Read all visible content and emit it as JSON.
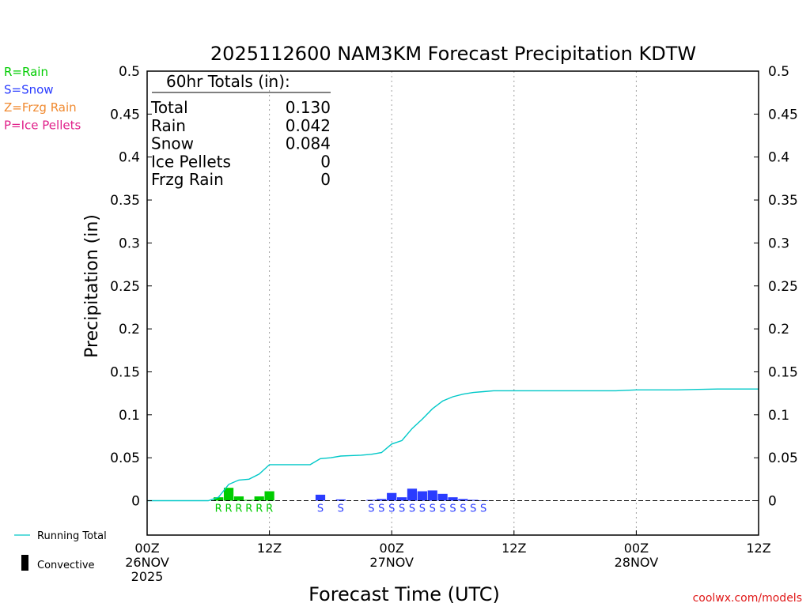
{
  "chart_data": {
    "type": "bar",
    "title": "2025112600 NAM3KM Forecast Precipitation KDTW",
    "xlabel": "Forecast Time (UTC)",
    "ylabel": "Precipitation (in)",
    "ylim": [
      -0.04,
      0.5
    ],
    "xlim_hours": [
      0,
      60
    ],
    "y_ticks": [
      0,
      0.05,
      0.1,
      0.15,
      0.2,
      0.25,
      0.3,
      0.35,
      0.4,
      0.45,
      0.5
    ],
    "y_tick_labels": [
      "0",
      "0.05",
      "0.1",
      "0.15",
      "0.2",
      "0.25",
      "0.3",
      "0.35",
      "0.4",
      "0.45",
      "0.5"
    ],
    "x_ticks": [
      {
        "hour": 0,
        "lines": [
          "00Z",
          "26NOV",
          "2025"
        ]
      },
      {
        "hour": 12,
        "lines": [
          "12Z"
        ]
      },
      {
        "hour": 24,
        "lines": [
          "00Z",
          "27NOV"
        ]
      },
      {
        "hour": 36,
        "lines": [
          "12Z"
        ]
      },
      {
        "hour": 48,
        "lines": [
          "00Z",
          "28NOV"
        ]
      },
      {
        "hour": 60,
        "lines": [
          "12Z"
        ]
      }
    ],
    "grid_hours": [
      12,
      24,
      36,
      48
    ],
    "legend": {
      "types": [
        {
          "label": "R=Rain",
          "color": "#00cc00"
        },
        {
          "label": "S=Snow",
          "color": "#2a3cff"
        },
        {
          "label": "Z=Frzg Rain",
          "color": "#f08a30"
        },
        {
          "label": "P=Ice Pellets",
          "color": "#e0208a"
        }
      ],
      "running_total_label": "Running Total",
      "convective_label": "Convective"
    },
    "totals": {
      "heading": "60hr Totals (in):",
      "rows": [
        {
          "label": "Total",
          "value": "0.130"
        },
        {
          "label": "Rain",
          "value": "0.042"
        },
        {
          "label": "Snow",
          "value": "0.084"
        },
        {
          "label": "Ice Pellets",
          "value": "0"
        },
        {
          "label": "Frzg Rain",
          "value": "0"
        }
      ]
    },
    "bars": [
      {
        "hour": 7,
        "value": 0.004,
        "type": "R"
      },
      {
        "hour": 8,
        "value": 0.015,
        "type": "R"
      },
      {
        "hour": 9,
        "value": 0.005,
        "type": "R"
      },
      {
        "hour": 10,
        "value": 0.001,
        "type": "R"
      },
      {
        "hour": 11,
        "value": 0.005,
        "type": "R"
      },
      {
        "hour": 12,
        "value": 0.011,
        "type": "R"
      },
      {
        "hour": 17,
        "value": 0.007,
        "type": "S"
      },
      {
        "hour": 19,
        "value": 0.0015,
        "type": "S"
      },
      {
        "hour": 22,
        "value": 0.001,
        "type": "S"
      },
      {
        "hour": 23,
        "value": 0.002,
        "type": "S"
      },
      {
        "hour": 24,
        "value": 0.009,
        "type": "S"
      },
      {
        "hour": 25,
        "value": 0.004,
        "type": "S"
      },
      {
        "hour": 26,
        "value": 0.014,
        "type": "S"
      },
      {
        "hour": 27,
        "value": 0.011,
        "type": "S"
      },
      {
        "hour": 28,
        "value": 0.012,
        "type": "S"
      },
      {
        "hour": 29,
        "value": 0.008,
        "type": "S"
      },
      {
        "hour": 30,
        "value": 0.004,
        "type": "S"
      },
      {
        "hour": 31,
        "value": 0.002,
        "type": "S"
      },
      {
        "hour": 32,
        "value": 0.001,
        "type": "S"
      },
      {
        "hour": 33,
        "value": 0.0005,
        "type": "S"
      }
    ],
    "running_total": {
      "hours": [
        0,
        6,
        7,
        8,
        9,
        10,
        11,
        12,
        13,
        14,
        15,
        16,
        17,
        18,
        19,
        20,
        21,
        22,
        23,
        24,
        25,
        26,
        27,
        28,
        29,
        30,
        31,
        32,
        33,
        34,
        36,
        40,
        44,
        46,
        48,
        50,
        52,
        54,
        56,
        58,
        60
      ],
      "values": [
        0,
        0,
        0.004,
        0.019,
        0.024,
        0.025,
        0.031,
        0.042,
        0.042,
        0.042,
        0.042,
        0.042,
        0.049,
        0.05,
        0.052,
        0.0525,
        0.053,
        0.054,
        0.056,
        0.066,
        0.07,
        0.084,
        0.095,
        0.107,
        0.116,
        0.121,
        0.124,
        0.126,
        0.127,
        0.128,
        0.128,
        0.128,
        0.128,
        0.128,
        0.129,
        0.129,
        0.129,
        0.1295,
        0.13,
        0.13,
        0.13
      ],
      "color": "#00c8c8"
    }
  },
  "credit": "coolwx.com/models"
}
